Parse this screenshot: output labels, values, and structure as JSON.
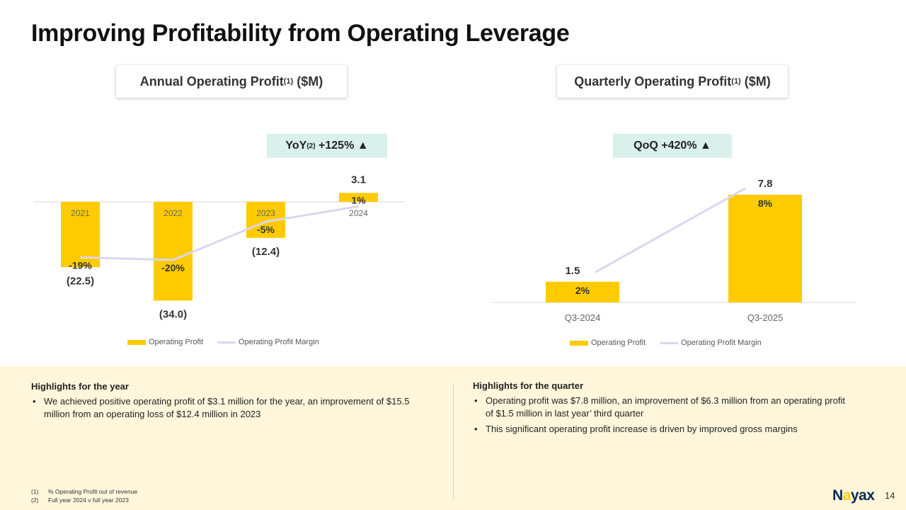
{
  "title": "Improving Profitability from Operating Leverage",
  "annual": {
    "header_text": "Annual Operating Profit",
    "header_sup": "(1)",
    "header_unit": "($M)",
    "chip_prefix": "YoY",
    "chip_sup": "(2)",
    "chip_value": "+125% ▲"
  },
  "quarterly": {
    "header_text": "Quarterly Operating Profit",
    "header_sup": "(1)",
    "header_unit": "($M)",
    "chip_value": "QoQ +420% ▲"
  },
  "legend": {
    "bar": "Operating Profit",
    "line": "Operating Profit Margin"
  },
  "colors": {
    "bar": "#fecb00",
    "line": "#dcd6f0",
    "chip_bg": "#d9f1ea",
    "panel_bg": "#fff6db",
    "logo": "#0a2a52"
  },
  "chart_data": [
    {
      "type": "bar",
      "title": "Annual Operating Profit(1) ($M)",
      "categories": [
        "2021",
        "2022",
        "2023",
        "2024"
      ],
      "series": [
        {
          "name": "Operating Profit",
          "values": [
            -22.5,
            -34.0,
            -12.4,
            3.1
          ],
          "labels": [
            "(22.5)",
            "(34.0)",
            "(12.4)",
            "3.1"
          ]
        },
        {
          "name": "Operating Profit Margin",
          "type": "line",
          "values": [
            -19,
            -20,
            -5,
            1
          ],
          "labels": [
            "-19%",
            "-20%",
            "-5%",
            "1%"
          ]
        }
      ]
    },
    {
      "type": "bar",
      "title": "Quarterly Operating Profit(1) ($M)",
      "categories": [
        "Q3-2024",
        "Q3-2025"
      ],
      "series": [
        {
          "name": "Operating Profit",
          "values": [
            1.5,
            7.8
          ],
          "labels": [
            "1.5",
            "7.8"
          ]
        },
        {
          "name": "Operating Profit Margin",
          "type": "line",
          "values": [
            2,
            8
          ],
          "labels": [
            "2%",
            "8%"
          ]
        }
      ]
    }
  ],
  "highlights_year": {
    "title": "Highlights for the year",
    "items": [
      "We achieved positive operating profit of $3.1 million for the year, an improvement of $15.5 million from an operating loss of $12.4 million in 2023"
    ]
  },
  "highlights_quarter": {
    "title": "Highlights for the quarter",
    "items": [
      "Operating profit was $7.8 million, an improvement of $6.3 million from an operating profit of $1.5 million in last year’ third quarter",
      "This significant operating profit increase is driven by improved gross margins"
    ]
  },
  "footnotes": [
    {
      "num": "(1)",
      "text": "% Operating Profit out of revenue"
    },
    {
      "num": "(2)",
      "text": "Full year 2024 v full year 2023"
    }
  ],
  "logo": {
    "text_a": "N",
    "text_dot": "a",
    "text_b": "yax"
  },
  "page_number": "14"
}
